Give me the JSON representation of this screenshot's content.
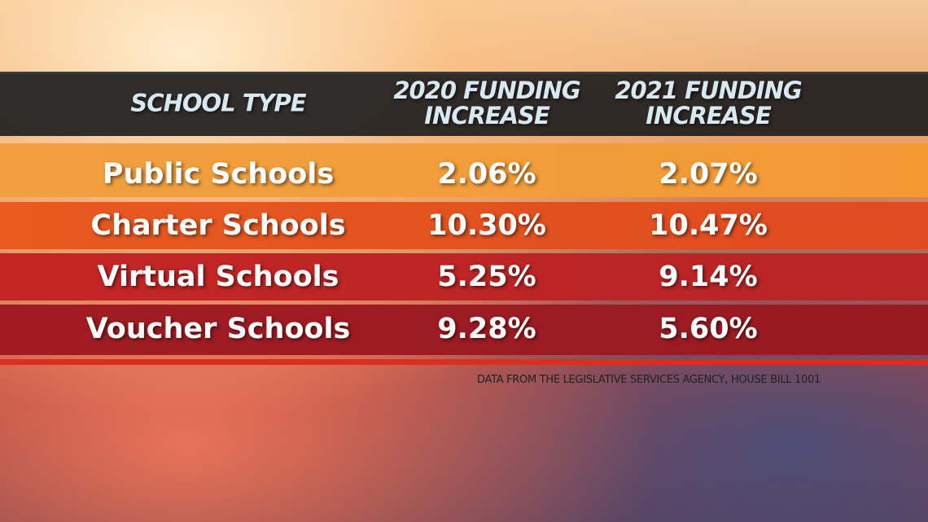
{
  "table": {
    "header": [
      "SCHOOL TYPE",
      "2020 FUNDING\nINCREASE",
      "2021 FUNDING\nINCREASE"
    ],
    "rows": [
      [
        "Public Schools",
        "2.06%",
        "2.07%"
      ],
      [
        "Charter Schools",
        "10.30%",
        "10.47%"
      ],
      [
        "Virtual Schools",
        "5.25%",
        "9.14%"
      ],
      [
        "Voucher Schools",
        "9.28%",
        "5.60%"
      ]
    ]
  },
  "source": "DATA FROM THE LEGISLATIVE SERVICES AGENCY, HOUSE BILL 1001"
}
